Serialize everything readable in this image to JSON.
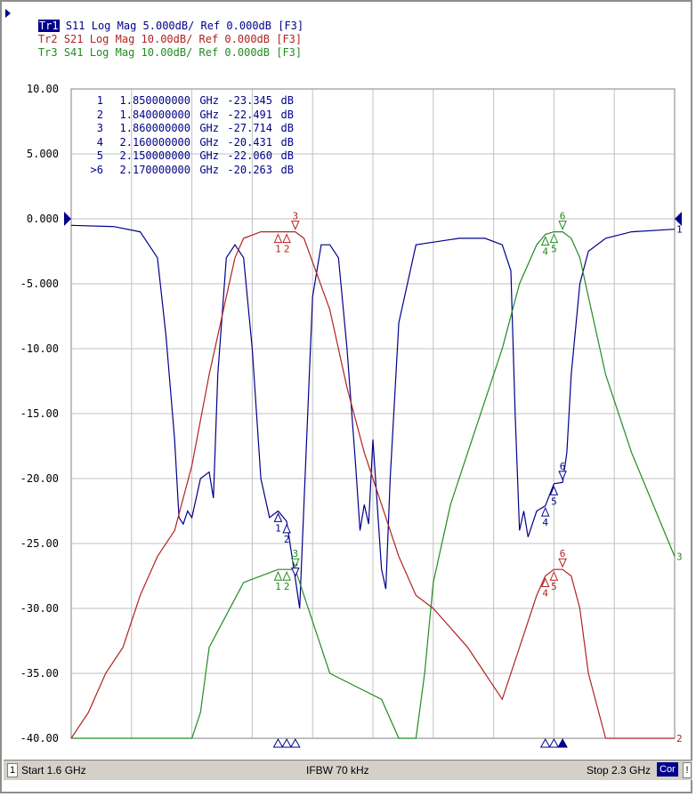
{
  "traces_header": [
    {
      "tag": "Tr1",
      "rest": " S11 Log Mag 5.000dB/ Ref 0.000dB [F3]",
      "color": "#00008b",
      "active": true
    },
    {
      "tag": "Tr2",
      "rest": " S21 Log Mag 10.00dB/ Ref 0.000dB [F3]",
      "color": "#b22222",
      "active": false
    },
    {
      "tag": "Tr3",
      "rest": " S41 Log Mag 10.00dB/ Ref 0.000dB [F3]",
      "color": "#228b22",
      "active": false
    }
  ],
  "marker_table": [
    {
      "id": "1",
      "freq": "1.850000000",
      "unit": "GHz",
      "value": "-23.345",
      "db": "dB"
    },
    {
      "id": "2",
      "freq": "1.840000000",
      "unit": "GHz",
      "value": "-22.491",
      "db": "dB"
    },
    {
      "id": "3",
      "freq": "1.860000000",
      "unit": "GHz",
      "value": "-27.714",
      "db": "dB"
    },
    {
      "id": "4",
      "freq": "2.160000000",
      "unit": "GHz",
      "value": "-20.431",
      "db": "dB"
    },
    {
      "id": "5",
      "freq": "2.150000000",
      "unit": "GHz",
      "value": "-22.060",
      "db": "dB"
    },
    {
      "id": ">6",
      "freq": "2.170000000",
      "unit": "GHz",
      "value": "-20.263",
      "db": "dB"
    }
  ],
  "status_bar": {
    "channel": "1",
    "start": "Start 1.6 GHz",
    "ifbw": "IFBW 70 kHz",
    "stop": "Stop 2.3 GHz",
    "cor": "Cor",
    "bang": "!"
  },
  "chart_data": {
    "type": "line",
    "xlim": [
      1.6,
      2.3
    ],
    "x_unit": "GHz",
    "ylim": [
      -40,
      10
    ],
    "y_tick_labels": [
      "10.00",
      "5.000",
      "0.000",
      "-5.000",
      "-10.00",
      "-15.00",
      "-20.00",
      "-25.00",
      "-30.00",
      "-35.00",
      "-40.00"
    ],
    "y_tick_values": [
      10,
      5,
      0,
      -5,
      -10,
      -15,
      -20,
      -25,
      -30,
      -35,
      -40
    ],
    "x_divisions": 10,
    "grid": true,
    "background": "#ffffff",
    "grid_color": "#c0c0c0",
    "series": [
      {
        "id": "1",
        "color": "#00008b",
        "x": [
          1.6,
          1.65,
          1.68,
          1.7,
          1.71,
          1.72,
          1.725,
          1.73,
          1.735,
          1.74,
          1.75,
          1.76,
          1.765,
          1.77,
          1.78,
          1.79,
          1.8,
          1.81,
          1.82,
          1.83,
          1.84,
          1.85,
          1.86,
          1.865,
          1.87,
          1.88,
          1.89,
          1.9,
          1.91,
          1.92,
          1.93,
          1.935,
          1.94,
          1.945,
          1.95,
          1.96,
          1.965,
          1.97,
          1.98,
          2.0,
          2.05,
          2.08,
          2.1,
          2.11,
          2.115,
          2.12,
          2.125,
          2.13,
          2.14,
          2.15,
          2.16,
          2.17,
          2.175,
          2.18,
          2.19,
          2.2,
          2.22,
          2.25,
          2.3
        ],
        "y": [
          -0.5,
          -0.6,
          -1.0,
          -3.0,
          -9.0,
          -17.0,
          -23.0,
          -23.5,
          -22.5,
          -23.0,
          -20.0,
          -19.5,
          -21.5,
          -12.0,
          -3.0,
          -2.0,
          -3.0,
          -10.0,
          -20.0,
          -23.0,
          -22.5,
          -23.3,
          -27.7,
          -30.0,
          -22.0,
          -6.0,
          -2.0,
          -2.0,
          -3.0,
          -10.0,
          -19.0,
          -24.0,
          -22.0,
          -23.5,
          -17.0,
          -27.0,
          -28.5,
          -20.0,
          -8.0,
          -2.0,
          -1.5,
          -1.5,
          -2.0,
          -4.0,
          -15.0,
          -24.0,
          -22.5,
          -24.5,
          -22.5,
          -22.1,
          -20.4,
          -20.3,
          -18.0,
          -12.0,
          -5.0,
          -2.5,
          -1.5,
          -1.0,
          -0.8
        ],
        "end_label": "1"
      },
      {
        "id": "2",
        "color": "#b22222",
        "x": [
          1.6,
          1.62,
          1.64,
          1.66,
          1.68,
          1.7,
          1.72,
          1.74,
          1.76,
          1.78,
          1.79,
          1.8,
          1.82,
          1.84,
          1.85,
          1.86,
          1.87,
          1.9,
          1.92,
          1.94,
          1.96,
          1.97,
          1.98,
          2.0,
          2.02,
          2.04,
          2.06,
          2.08,
          2.1,
          2.12,
          2.14,
          2.15,
          2.16,
          2.17,
          2.18,
          2.19,
          2.2,
          2.22,
          2.24,
          2.26,
          2.28,
          2.3
        ],
        "y": [
          -40.0,
          -38.0,
          -35.0,
          -33.0,
          -29.0,
          -26.0,
          -24.0,
          -19.0,
          -12.0,
          -6.0,
          -3.0,
          -1.5,
          -1.0,
          -1.0,
          -1.0,
          -1.0,
          -1.5,
          -7.0,
          -13.0,
          -18.0,
          -22.0,
          -24.0,
          -26.0,
          -29.0,
          -30.0,
          -31.5,
          -33.0,
          -35.0,
          -37.0,
          -33.0,
          -29.0,
          -27.5,
          -27.0,
          -27.0,
          -27.5,
          -30.0,
          -35.0,
          -40.0,
          -40.0,
          -40.0,
          -40.0,
          -40.0
        ],
        "end_label": "2"
      },
      {
        "id": "3",
        "color": "#228b22",
        "x": [
          1.6,
          1.7,
          1.74,
          1.75,
          1.76,
          1.8,
          1.84,
          1.86,
          1.88,
          1.9,
          1.93,
          1.96,
          1.98,
          2.0,
          2.01,
          2.02,
          2.04,
          2.06,
          2.08,
          2.1,
          2.12,
          2.14,
          2.15,
          2.16,
          2.17,
          2.18,
          2.19,
          2.2,
          2.22,
          2.25,
          2.3
        ],
        "y": [
          -40.0,
          -40.0,
          -40.0,
          -38.0,
          -33.0,
          -28.0,
          -27.0,
          -27.0,
          -31.0,
          -35.0,
          -36.0,
          -37.0,
          -40.0,
          -40.0,
          -35.0,
          -28.0,
          -22.0,
          -18.0,
          -14.0,
          -10.0,
          -5.0,
          -2.0,
          -1.2,
          -1.0,
          -1.0,
          -1.5,
          -3.0,
          -6.0,
          -12.0,
          -18.0,
          -26.0
        ],
        "end_label": "3"
      }
    ],
    "markers": [
      {
        "trace": "1",
        "labels": [
          "2",
          "1",
          "3"
        ]
      },
      {
        "trace": "2",
        "labels": [
          "2",
          "1",
          "3"
        ]
      },
      {
        "trace": "3",
        "labels": [
          "2",
          "1",
          "3"
        ]
      },
      {
        "trace": "1",
        "labels": [
          "5",
          "4",
          "6"
        ]
      },
      {
        "trace": "2",
        "labels": [
          "5",
          "4",
          "6"
        ]
      },
      {
        "trace": "3",
        "labels": [
          "5",
          "4",
          "6"
        ]
      }
    ],
    "ref_level": 0
  }
}
